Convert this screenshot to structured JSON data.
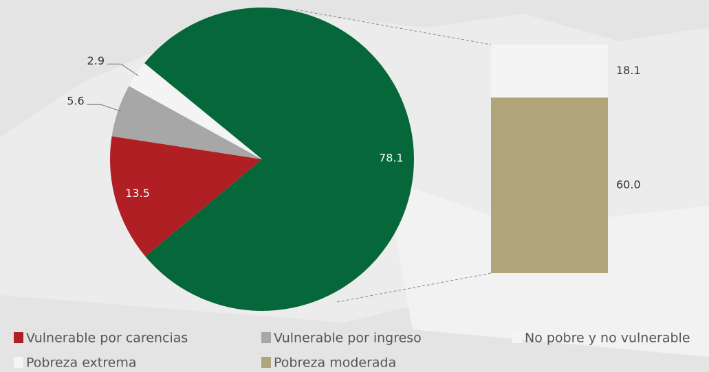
{
  "chart_data": {
    "type": "pie-of-bar",
    "categories": [
      null,
      "Vulnerable por carencias",
      "Vulnerable por ingreso",
      "No pobre y no vulnerable"
    ],
    "values": [
      78.1,
      13.5,
      5.6,
      2.9
    ],
    "colors": [
      "#06673a",
      "#b01f24",
      "#a7a7a7",
      "#f4f4f4"
    ],
    "breakdown": {
      "type": "stacked-bar",
      "categories": [
        "Pobreza extrema",
        "Pobreza moderada"
      ],
      "values": [
        18.1,
        60.0
      ],
      "value_labels": [
        "18.1",
        "60.0"
      ],
      "colors": [
        "#f4f4f4",
        "#b0a57a"
      ]
    }
  }
}
